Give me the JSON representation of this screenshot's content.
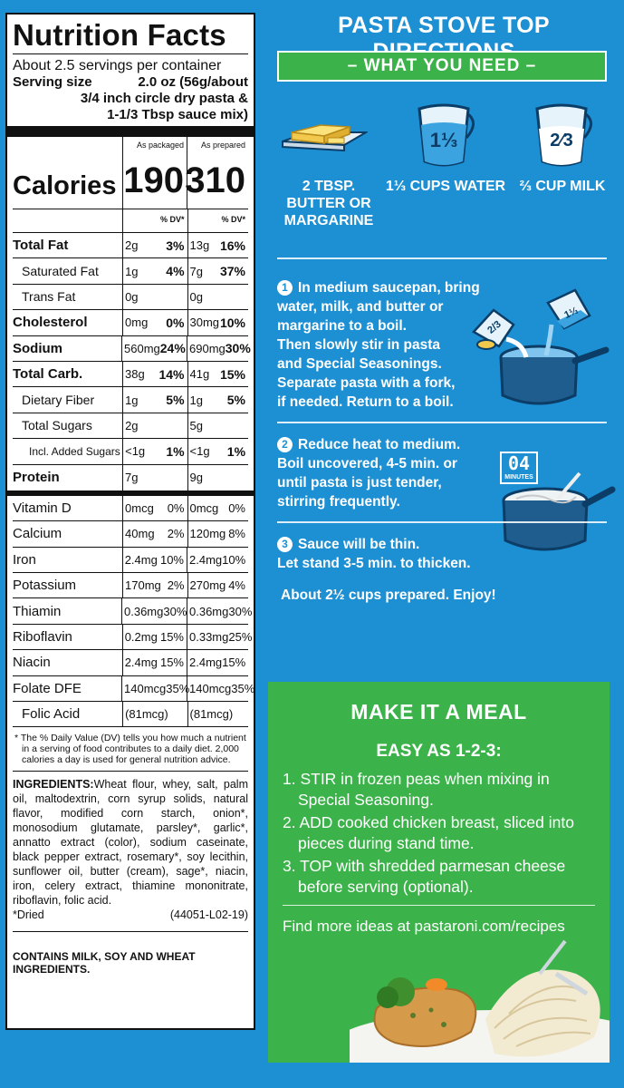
{
  "nutrition": {
    "title": "Nutrition Facts",
    "servings": "About 2.5 servings per container",
    "serving_size_label": "Serving size",
    "serving_size_value_1": "2.0 oz (56g/about",
    "serving_size_value_2": "3/4 inch circle dry pasta &",
    "serving_size_value_3": "1-1/3 Tbsp sauce mix)",
    "col_packaged": "As packaged",
    "col_prepared": "As prepared",
    "calories_label": "Calories",
    "calories_packaged": "190",
    "calories_prepared": "310",
    "dv_header": "% DV*",
    "nutrients": [
      {
        "name": "Total Fat",
        "a": "2g",
        "ap": "3%",
        "b": "13g",
        "bp": "16%"
      },
      {
        "name": "Saturated Fat",
        "a": "1g",
        "ap": "4%",
        "b": "7g",
        "bp": "37%"
      },
      {
        "name": "Trans Fat",
        "a": "0g",
        "ap": "",
        "b": "0g",
        "bp": ""
      },
      {
        "name": "Cholesterol",
        "a": "0mg",
        "ap": "0%",
        "b": "30mg",
        "bp": "10%"
      },
      {
        "name": "Sodium",
        "a": "560mg",
        "ap": "24%",
        "b": "690mg",
        "bp": "30%"
      },
      {
        "name": "Total Carb.",
        "a": "38g",
        "ap": "14%",
        "b": "41g",
        "bp": "15%"
      },
      {
        "name": "Dietary Fiber",
        "a": "1g",
        "ap": "5%",
        "b": "1g",
        "bp": "5%"
      },
      {
        "name": "Total Sugars",
        "a": "2g",
        "ap": "",
        "b": "5g",
        "bp": ""
      },
      {
        "name": "Incl. Added Sugars",
        "a": "<1g",
        "ap": "1%",
        "b": "<1g",
        "bp": "1%"
      },
      {
        "name": "Protein",
        "a": "7g",
        "ap": "",
        "b": "9g",
        "bp": ""
      }
    ],
    "vitamins": [
      {
        "name": "Vitamin D",
        "a": "0mcg",
        "ap": "0%",
        "b": "0mcg",
        "bp": "0%"
      },
      {
        "name": "Calcium",
        "a": "40mg",
        "ap": "2%",
        "b": "120mg",
        "bp": "8%"
      },
      {
        "name": "Iron",
        "a": "2.4mg",
        "ap": "10%",
        "b": "2.4mg",
        "bp": "10%"
      },
      {
        "name": "Potassium",
        "a": "170mg",
        "ap": "2%",
        "b": "270mg",
        "bp": "4%"
      },
      {
        "name": "Thiamin",
        "a": "0.36mg",
        "ap": "30%",
        "b": "0.36mg",
        "bp": "30%"
      },
      {
        "name": "Riboflavin",
        "a": "0.2mg",
        "ap": "15%",
        "b": "0.33mg",
        "bp": "25%"
      },
      {
        "name": "Niacin",
        "a": "2.4mg",
        "ap": "15%",
        "b": "2.4mg",
        "bp": "15%"
      },
      {
        "name": "Folate DFE",
        "a": "140mcg",
        "ap": "35%",
        "b": "140mcg",
        "bp": "35%"
      },
      {
        "name": "Folic Acid",
        "a": "(81mcg)",
        "ap": "",
        "b": "(81mcg)",
        "bp": ""
      }
    ],
    "footnote": "* The % Daily Value (DV) tells you how much a nutrient in a serving of food contributes to a daily diet. 2,000 calories a day is used for general nutrition advice.",
    "ingredients_label": "INGREDIENTS:",
    "ingredients_text": "Wheat flour, whey, salt, palm oil, maltodextrin, corn syrup solids, natural flavor, modified corn starch, onion*, monosodium glutamate, parsley*, garlic*, annatto extract (color), sodium caseinate, black pepper extract, rosemary*, soy lecithin, sunflower oil, butter (cream), sage*, niacin, iron, celery extract, thiamine mononitrate, riboflavin, folic acid.",
    "dried": "*Dried",
    "code": "(44051-L02-19)",
    "contains": "CONTAINS MILK, SOY AND WHEAT INGREDIENTS."
  },
  "directions": {
    "title": "PASTA STOVE TOP DIRECTIONS",
    "need_banner": "– WHAT YOU NEED –",
    "need_butter_1": "2 TBSP.",
    "need_butter_2": "BUTTER OR",
    "need_butter_3": "MARGARINE",
    "need_water": "1⅓ CUPS WATER",
    "need_milk": "⅔ CUP MILK",
    "cup_water_label": "1⅓",
    "cup_milk_label": "2⁄3",
    "timer_label": "04",
    "timer_sub": "MINUTES",
    "step1_num": "1",
    "step1_lines": [
      "In medium saucepan, bring",
      "water, milk, and butter or",
      "margarine to a boil.",
      "Then slowly stir in pasta",
      "and Special Seasonings.",
      "Separate pasta with a fork,",
      "if needed. Return to a boil."
    ],
    "step2_num": "2",
    "step2_lines": [
      "Reduce heat to medium.",
      "Boil uncovered, 4-5 min. or",
      "until pasta is just tender,",
      "stirring frequently."
    ],
    "step3_num": "3",
    "step3_lines": [
      "Sauce will be thin.",
      "Let stand 3-5 min. to thicken."
    ],
    "enjoy": "About 2½ cups prepared. Enjoy!"
  },
  "meal": {
    "title": "MAKE IT A MEAL",
    "subtitle": "EASY AS 1-2-3:",
    "items": [
      "1. STIR in frozen peas when mixing in Special Seasoning.",
      "2. ADD cooked chicken breast, sliced into pieces during stand time.",
      "3. TOP with shredded parmesan cheese before serving (optional)."
    ],
    "link": "Find more ideas at pastaroni.com/recipes"
  },
  "colors": {
    "panel_blue": "#1d8fd3",
    "accent_green": "#3cb34a",
    "ink": "#111111"
  }
}
